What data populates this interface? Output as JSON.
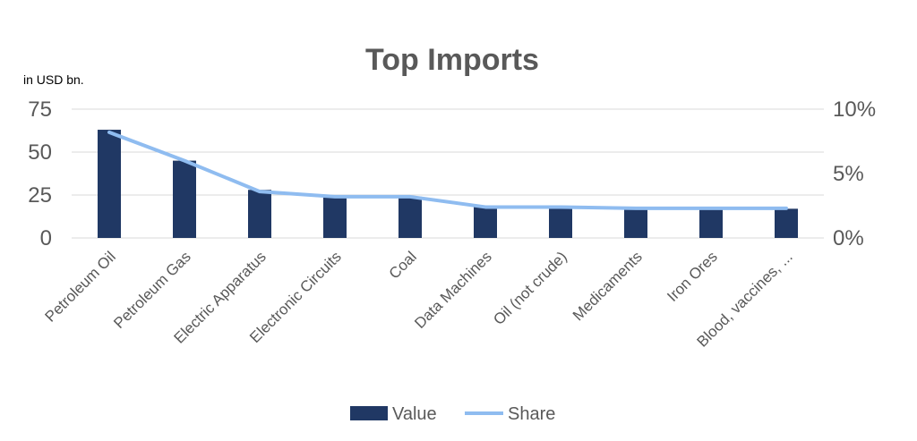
{
  "chart_data": {
    "type": "bar",
    "title": "Top Imports",
    "unit_label": "in USD bn.",
    "categories": [
      "Petroleum Oil",
      "Petroleum Gas",
      "Electric Apparatus",
      "Electronic Circuits",
      "Coal",
      "Data Machines",
      "Oil (not crude)",
      "Medicaments",
      "Iron Ores",
      "Blood, vaccines, ..."
    ],
    "series": [
      {
        "name": "Value",
        "type": "bar",
        "axis": "left",
        "color": "#203864",
        "values": [
          63,
          45,
          28,
          24,
          24,
          18,
          18,
          17,
          17,
          17
        ]
      },
      {
        "name": "Share",
        "type": "line",
        "axis": "right",
        "color": "#8fbcf0",
        "values": [
          8.2,
          6.0,
          3.6,
          3.2,
          3.2,
          2.4,
          2.4,
          2.3,
          2.3,
          2.3
        ]
      }
    ],
    "y_left": {
      "ylim": [
        0,
        75
      ],
      "ticks": [
        "0",
        "25",
        "50",
        "75"
      ],
      "tick_values": [
        0,
        25,
        50,
        75
      ]
    },
    "y_right": {
      "ylim": [
        0,
        10
      ],
      "ticks": [
        "0%",
        "5%",
        "10%"
      ],
      "tick_values": [
        0,
        5,
        10
      ]
    },
    "grid": true,
    "legend_position": "bottom"
  }
}
